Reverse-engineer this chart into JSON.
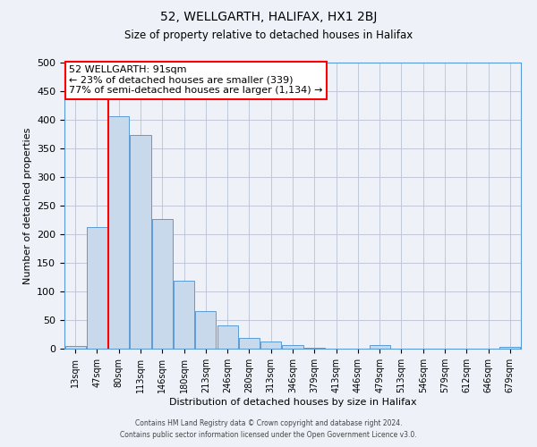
{
  "title1": "52, WELLGARTH, HALIFAX, HX1 2BJ",
  "title2": "Size of property relative to detached houses in Halifax",
  "xlabel": "Distribution of detached houses by size in Halifax",
  "ylabel": "Number of detached properties",
  "bin_labels": [
    "13sqm",
    "47sqm",
    "80sqm",
    "113sqm",
    "146sqm",
    "180sqm",
    "213sqm",
    "246sqm",
    "280sqm",
    "313sqm",
    "346sqm",
    "379sqm",
    "413sqm",
    "446sqm",
    "479sqm",
    "513sqm",
    "546sqm",
    "579sqm",
    "612sqm",
    "646sqm",
    "679sqm"
  ],
  "bar_values": [
    4,
    213,
    407,
    373,
    226,
    119,
    65,
    40,
    18,
    13,
    7,
    2,
    0,
    0,
    7,
    0,
    0,
    0,
    0,
    0,
    3
  ],
  "bar_color": "#c9d9ec",
  "bar_edge_color": "#5b9bd5",
  "redline_x": 1.5,
  "ylim": [
    0,
    500
  ],
  "yticks": [
    0,
    50,
    100,
    150,
    200,
    250,
    300,
    350,
    400,
    450,
    500
  ],
  "annotation_title": "52 WELLGARTH: 91sqm",
  "annotation_line1": "← 23% of detached houses are smaller (339)",
  "annotation_line2": "77% of semi-detached houses are larger (1,134) →",
  "footer1": "Contains HM Land Registry data © Crown copyright and database right 2024.",
  "footer2": "Contains public sector information licensed under the Open Government Licence v3.0.",
  "background_color": "#eef2f8"
}
